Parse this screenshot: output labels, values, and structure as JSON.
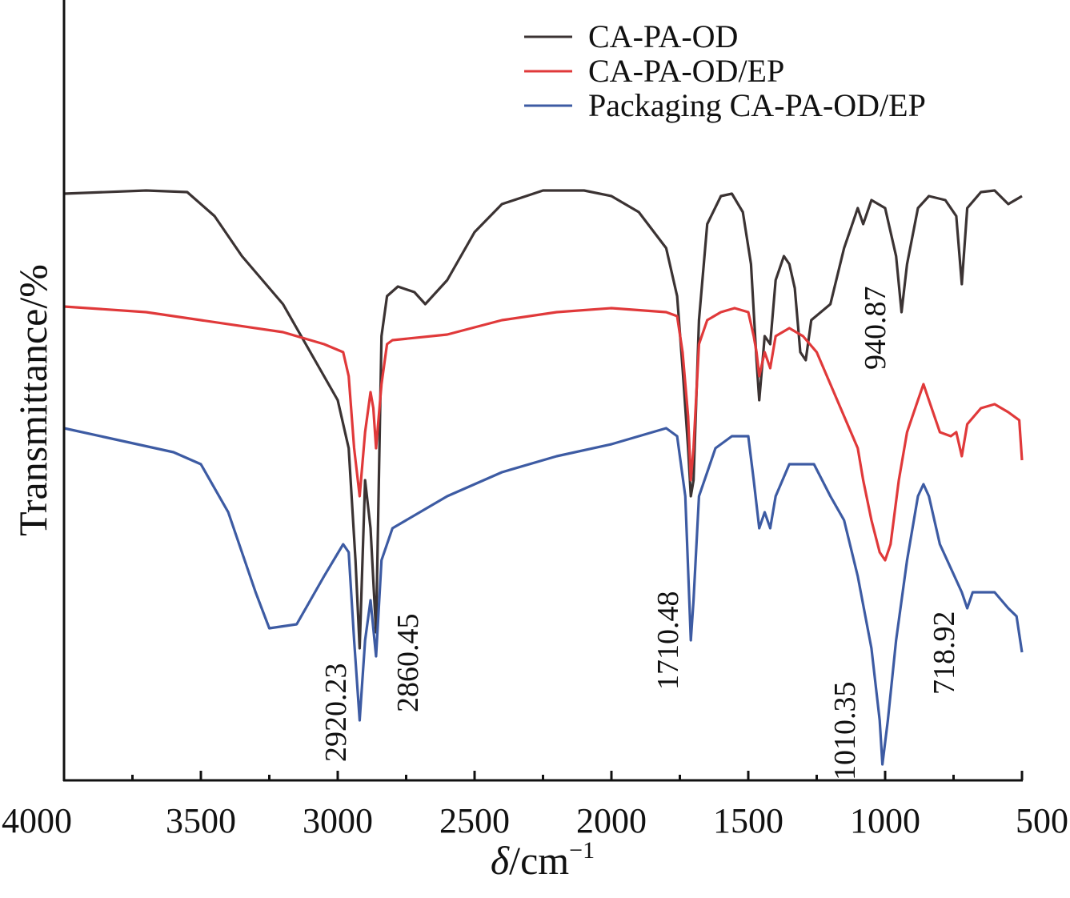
{
  "chart_data": {
    "type": "line",
    "title": "",
    "xlabel_symbol": "δ",
    "xlabel_unit": "/cm",
    "xlabel_exp": "−1",
    "ylabel": "Transmittance/%",
    "xlim": [
      4000,
      500
    ],
    "x_reversed": true,
    "ylim": [
      0,
      97.5
    ],
    "y_ticks_shown": false,
    "grid": false,
    "legend_position": "top-right",
    "x_ticks": [
      4000,
      3500,
      3000,
      2500,
      2000,
      1500,
      1000,
      500
    ],
    "x_tick_labels": [
      "4000",
      "3500",
      "3000",
      "2500",
      "2000",
      "1500",
      "1000",
      "500"
    ],
    "series": [
      {
        "name": "CA-PA-OD",
        "color": "#3b3333",
        "x": [
          4000,
          3700,
          3550,
          3450,
          3350,
          3200,
          3100,
          3000,
          2960,
          2935,
          2920,
          2900,
          2880,
          2860,
          2840,
          2820,
          2780,
          2720,
          2680,
          2600,
          2500,
          2400,
          2250,
          2100,
          2000,
          1900,
          1800,
          1760,
          1740,
          1720,
          1710,
          1700,
          1680,
          1650,
          1600,
          1560,
          1520,
          1490,
          1470,
          1460,
          1440,
          1420,
          1400,
          1370,
          1350,
          1330,
          1310,
          1290,
          1270,
          1200,
          1150,
          1100,
          1080,
          1050,
          1000,
          960,
          940,
          920,
          880,
          840,
          780,
          740,
          720,
          700,
          650,
          600,
          550,
          500
        ],
        "y": [
          73.3,
          73.7,
          73.5,
          70.5,
          65.5,
          59.5,
          53.5,
          47.5,
          41.5,
          27.5,
          16.5,
          37.5,
          31.5,
          18.5,
          55.5,
          60.5,
          61.7,
          61,
          59.5,
          62.5,
          68.5,
          72,
          73.7,
          73.7,
          73,
          71,
          66.5,
          60.5,
          51.5,
          41.5,
          35.5,
          37.5,
          57.5,
          69.5,
          73,
          73.3,
          71,
          64.5,
          52.5,
          47.5,
          55.5,
          54.5,
          62.5,
          65.5,
          64.5,
          61.5,
          53.5,
          52.5,
          57.5,
          59.5,
          66.5,
          71.5,
          69.5,
          72.5,
          71.5,
          65.5,
          58.5,
          64.5,
          71.5,
          73,
          72.5,
          70.5,
          62,
          71.5,
          73.5,
          73.7,
          72,
          73
        ]
      },
      {
        "name": "CA-PA-OD/EP",
        "color": "#e0393a",
        "x": [
          4000,
          3700,
          3500,
          3200,
          3050,
          2980,
          2960,
          2940,
          2920,
          2900,
          2880,
          2870,
          2860,
          2840,
          2820,
          2800,
          2600,
          2400,
          2200,
          2000,
          1800,
          1760,
          1740,
          1720,
          1710,
          1700,
          1680,
          1650,
          1600,
          1550,
          1500,
          1480,
          1470,
          1460,
          1440,
          1420,
          1400,
          1350,
          1300,
          1250,
          1200,
          1150,
          1100,
          1080,
          1050,
          1020,
          1000,
          980,
          950,
          920,
          880,
          860,
          840,
          800,
          760,
          740,
          720,
          700,
          650,
          600,
          550,
          510,
          500
        ],
        "y": [
          59.2,
          58.5,
          57.5,
          56,
          54.5,
          53.5,
          50.5,
          41.5,
          35.5,
          43.5,
          48.5,
          46.5,
          41.5,
          49.5,
          54.5,
          55,
          55.7,
          57.5,
          58.5,
          59,
          58.5,
          58,
          53.5,
          45.5,
          37.5,
          41.5,
          54.5,
          57.5,
          58.5,
          59,
          58.5,
          55.5,
          53.5,
          50.5,
          53.5,
          51.5,
          55.5,
          56.5,
          55.5,
          53.5,
          49.5,
          45.5,
          41.5,
          37.5,
          32.5,
          28.5,
          27.5,
          29.5,
          37.5,
          43.5,
          47.5,
          49.5,
          47.5,
          43.5,
          43,
          43.5,
          40.5,
          44.5,
          46.5,
          47,
          46,
          45,
          40
        ]
      },
      {
        "name": "Packaging CA-PA-OD/EP",
        "color": "#3d5ba3",
        "x": [
          4000,
          3800,
          3600,
          3500,
          3400,
          3300,
          3250,
          3150,
          3050,
          2980,
          2960,
          2940,
          2920,
          2900,
          2880,
          2860,
          2840,
          2800,
          2700,
          2600,
          2400,
          2200,
          2000,
          1800,
          1760,
          1730,
          1710,
          1700,
          1680,
          1620,
          1560,
          1500,
          1480,
          1460,
          1440,
          1420,
          1400,
          1350,
          1300,
          1260,
          1200,
          1150,
          1100,
          1050,
          1020,
          1010,
          990,
          960,
          920,
          880,
          860,
          840,
          800,
          760,
          720,
          700,
          680,
          600,
          550,
          520,
          500
        ],
        "y": [
          44,
          42.5,
          41,
          39.5,
          33.5,
          23.5,
          19,
          19.5,
          25.5,
          29.5,
          28.5,
          17.5,
          7.5,
          17.5,
          22.5,
          15.5,
          27.5,
          31.5,
          33.5,
          35.5,
          38.5,
          40.5,
          42,
          44,
          43,
          35.5,
          17.5,
          22.5,
          35.5,
          41.5,
          43,
          43,
          37.5,
          31.5,
          33.5,
          31.5,
          35.5,
          39.5,
          39.5,
          39.5,
          35.5,
          32.5,
          25.5,
          16.5,
          7.5,
          2,
          7.5,
          17.5,
          27.5,
          35.5,
          37,
          35.5,
          29.5,
          26.5,
          23.5,
          21.5,
          23.5,
          23.5,
          21.5,
          20.5,
          16
        ]
      }
    ],
    "annotations": [
      {
        "label": "2920.23"
      },
      {
        "label": "2860.45"
      },
      {
        "label": "1710.48"
      },
      {
        "label": "1010.35"
      },
      {
        "label": "718.92"
      },
      {
        "label": "940.87"
      }
    ]
  }
}
